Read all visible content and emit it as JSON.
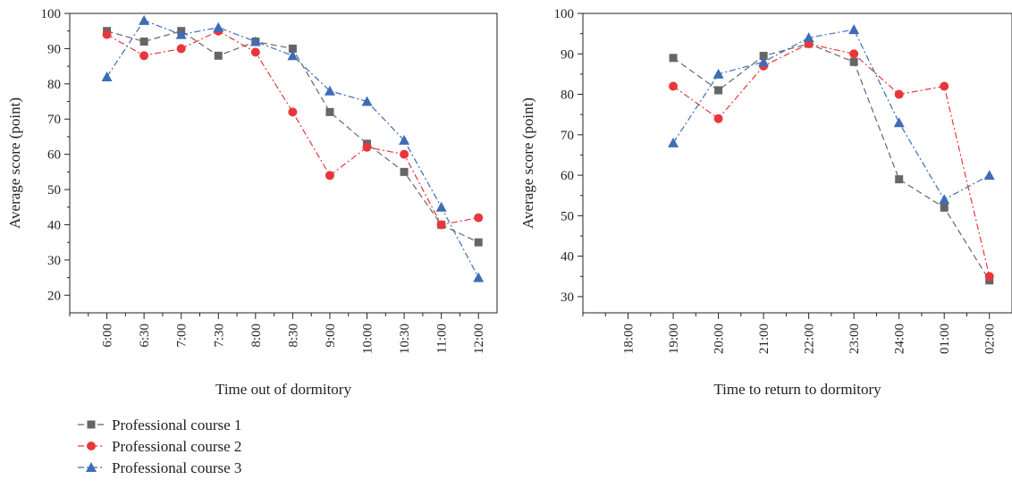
{
  "chart_data": [
    {
      "type": "line",
      "title": "",
      "xlabel": "Time out of dormitory",
      "ylabel": "Average score (point)",
      "categories": [
        "6:00",
        "6:30",
        "7:00",
        "7:30",
        "8:00",
        "8:30",
        "9:00",
        "10:00",
        "10:30",
        "11:00",
        "12:00"
      ],
      "ylim": [
        15,
        100
      ],
      "yticks": [
        20,
        30,
        40,
        50,
        60,
        70,
        80,
        90,
        100
      ],
      "grid": false,
      "series": [
        {
          "name": "Professional course 1",
          "values": [
            95,
            92,
            95,
            88,
            92,
            90,
            72,
            63,
            55,
            40,
            35
          ]
        },
        {
          "name": "Professional course 2",
          "values": [
            94,
            88,
            90,
            95,
            89,
            72,
            54,
            62,
            60,
            40,
            42
          ]
        },
        {
          "name": "Professional course 3",
          "values": [
            82,
            98,
            94,
            96,
            92,
            88,
            78,
            75,
            64,
            45,
            25
          ]
        }
      ]
    },
    {
      "type": "line",
      "title": "",
      "xlabel": "Time to return to dormitory",
      "ylabel": "Average score (point)",
      "categories": [
        "18:00",
        "19:00",
        "20:00",
        "21:00",
        "22:00",
        "23:00",
        "24:00",
        "01:00",
        "02:00"
      ],
      "ylim": [
        26,
        100
      ],
      "yticks": [
        30,
        40,
        50,
        60,
        70,
        80,
        90,
        100
      ],
      "grid": false,
      "series": [
        {
          "name": "Professional course 1",
          "values": [
            null,
            89,
            81,
            89.5,
            92.5,
            88,
            59,
            52,
            34
          ]
        },
        {
          "name": "Professional course 2",
          "values": [
            null,
            82,
            74,
            87,
            92.5,
            90,
            80,
            82,
            35
          ]
        },
        {
          "name": "Professional course 3",
          "values": [
            null,
            68,
            85,
            88,
            94,
            96,
            73,
            54,
            60
          ]
        }
      ]
    }
  ],
  "series_style": [
    {
      "color": "#666666",
      "marker": "square",
      "dash": "long-dash"
    },
    {
      "color": "#e8373a",
      "marker": "circle",
      "dash": "dash-dot"
    },
    {
      "color": "#3f6db5",
      "marker": "triangle",
      "dash": "dash-dot"
    }
  ],
  "legend": {
    "placement": "bottom-left",
    "items": [
      "Professional course 1",
      "Professional course 2",
      "Professional course 3"
    ]
  }
}
